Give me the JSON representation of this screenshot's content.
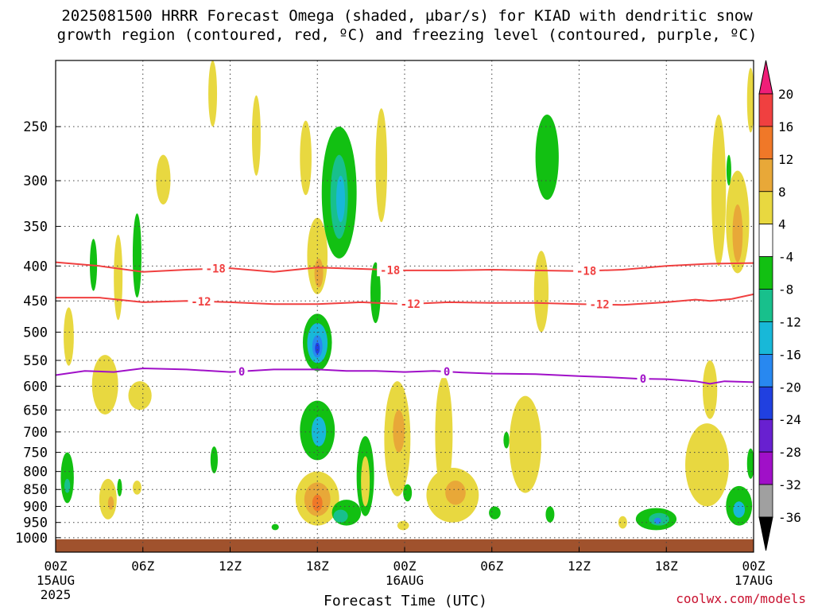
{
  "title_line1": "2025081500 HRRR Forecast Omega (shaded, µbar/s) for KIAD with dendritic snow",
  "title_line2": "growth region (contoured, red, ºC) and freezing level (contoured, purple, ºC)",
  "credit": "coolwx.com/models",
  "chart_data": {
    "type": "heatmap",
    "title": "2025081500 HRRR Forecast Omega (shaded, µbar/s) for KIAD with dendritic snow growth region (contoured, red, ºC) and freezing level (contoured, purple, ºC)",
    "xlabel": "Forecast Time (UTC)",
    "ylabel": "",
    "x_range_hours": [
      0,
      48
    ],
    "y_range_hpa": [
      1050,
      200
    ],
    "y_scale": "log-pressure",
    "grid": true,
    "x_ticks": [
      {
        "hour": 0,
        "label": "00Z",
        "sub1": "15AUG",
        "sub2": "2025"
      },
      {
        "hour": 6,
        "label": "06Z",
        "sub1": "",
        "sub2": ""
      },
      {
        "hour": 12,
        "label": "12Z",
        "sub1": "",
        "sub2": ""
      },
      {
        "hour": 18,
        "label": "18Z",
        "sub1": "",
        "sub2": ""
      },
      {
        "hour": 24,
        "label": "00Z",
        "sub1": "16AUG",
        "sub2": ""
      },
      {
        "hour": 30,
        "label": "06Z",
        "sub1": "",
        "sub2": ""
      },
      {
        "hour": 36,
        "label": "12Z",
        "sub1": "",
        "sub2": ""
      },
      {
        "hour": 42,
        "label": "18Z",
        "sub1": "",
        "sub2": ""
      },
      {
        "hour": 48,
        "label": "00Z",
        "sub1": "17AUG",
        "sub2": ""
      }
    ],
    "y_ticks": [
      250,
      300,
      350,
      400,
      450,
      500,
      550,
      600,
      650,
      700,
      750,
      800,
      850,
      900,
      950,
      1000
    ],
    "colorbar": {
      "labels": [
        "20",
        "16",
        "12",
        "8",
        "4",
        "-4",
        "-8",
        "-12",
        "-16",
        "-20",
        "-24",
        "-28",
        "-32",
        "-36"
      ],
      "colors": [
        "#f01e78",
        "#f04040",
        "#f07828",
        "#e8a838",
        "#e8d840",
        "#ffffff",
        "#12c012",
        "#18c08c",
        "#18b8d8",
        "#2888f0",
        "#2040e0",
        "#6820d0",
        "#a010c8",
        "#a0a0a0",
        "#000000"
      ]
    },
    "shaded_cells": [
      {
        "hour": 0.8,
        "p_center": 820,
        "p_halfspan": 70,
        "h_halfwidth": 0.45,
        "value": -6
      },
      {
        "hour": 0.8,
        "p_center": 840,
        "p_halfspan": 20,
        "h_halfwidth": 0.2,
        "value": -10
      },
      {
        "hour": 0.9,
        "p_center": 510,
        "p_halfspan": 50,
        "h_halfwidth": 0.35,
        "value": 5
      },
      {
        "hour": 2.6,
        "p_center": 400,
        "p_halfspan": 35,
        "h_halfwidth": 0.25,
        "value": -6
      },
      {
        "hour": 3.4,
        "p_center": 600,
        "p_halfspan": 60,
        "h_halfwidth": 0.9,
        "value": 5
      },
      {
        "hour": 3.6,
        "p_center": 880,
        "p_halfspan": 60,
        "h_halfwidth": 0.6,
        "value": 5
      },
      {
        "hour": 3.8,
        "p_center": 890,
        "p_halfspan": 20,
        "h_halfwidth": 0.2,
        "value": 9
      },
      {
        "hour": 4.3,
        "p_center": 420,
        "p_halfspan": 60,
        "h_halfwidth": 0.3,
        "value": 5
      },
      {
        "hour": 5.6,
        "p_center": 390,
        "p_halfspan": 55,
        "h_halfwidth": 0.3,
        "value": -6
      },
      {
        "hour": 5.8,
        "p_center": 620,
        "p_halfspan": 30,
        "h_halfwidth": 0.8,
        "value": 5
      },
      {
        "hour": 5.6,
        "p_center": 845,
        "p_halfspan": 20,
        "h_halfwidth": 0.3,
        "value": 5
      },
      {
        "hour": 4.4,
        "p_center": 845,
        "p_halfspan": 25,
        "h_halfwidth": 0.1,
        "value": -6
      },
      {
        "hour": 7.4,
        "p_center": 300,
        "p_halfspan": 25,
        "h_halfwidth": 0.5,
        "value": 5
      },
      {
        "hour": 10.8,
        "p_center": 220,
        "p_halfspan": 30,
        "h_halfwidth": 0.3,
        "value": 5
      },
      {
        "hour": 10.9,
        "p_center": 770,
        "p_halfspan": 35,
        "h_halfwidth": 0.25,
        "value": -6
      },
      {
        "hour": 13.8,
        "p_center": 260,
        "p_halfspan": 35,
        "h_halfwidth": 0.3,
        "value": 5
      },
      {
        "hour": 15.1,
        "p_center": 965,
        "p_halfspan": 10,
        "h_halfwidth": 0.25,
        "value": -6
      },
      {
        "hour": 17.2,
        "p_center": 280,
        "p_halfspan": 35,
        "h_halfwidth": 0.4,
        "value": 5
      },
      {
        "hour": 18.0,
        "p_center": 390,
        "p_halfspan": 50,
        "h_halfwidth": 0.7,
        "value": 6
      },
      {
        "hour": 18.1,
        "p_center": 410,
        "p_halfspan": 20,
        "h_halfwidth": 0.3,
        "value": 10
      },
      {
        "hour": 19.5,
        "p_center": 320,
        "p_halfspan": 70,
        "h_halfwidth": 1.2,
        "value": -6
      },
      {
        "hour": 19.5,
        "p_center": 320,
        "p_halfspan": 45,
        "h_halfwidth": 0.6,
        "value": -10
      },
      {
        "hour": 19.6,
        "p_center": 320,
        "p_halfspan": 25,
        "h_halfwidth": 0.3,
        "value": -14
      },
      {
        "hour": 18.0,
        "p_center": 520,
        "p_halfspan": 50,
        "h_halfwidth": 1.0,
        "value": -6
      },
      {
        "hour": 18.0,
        "p_center": 520,
        "p_halfspan": 35,
        "h_halfwidth": 0.7,
        "value": -12
      },
      {
        "hour": 18.0,
        "p_center": 525,
        "p_halfspan": 20,
        "h_halfwidth": 0.35,
        "value": -18
      },
      {
        "hour": 18.0,
        "p_center": 528,
        "p_halfspan": 10,
        "h_halfwidth": 0.15,
        "value": -22
      },
      {
        "hour": 18.0,
        "p_center": 700,
        "p_halfspan": 70,
        "h_halfwidth": 1.2,
        "value": -6
      },
      {
        "hour": 18.1,
        "p_center": 700,
        "p_halfspan": 35,
        "h_halfwidth": 0.5,
        "value": -12
      },
      {
        "hour": 18.0,
        "p_center": 880,
        "p_halfspan": 80,
        "h_halfwidth": 1.5,
        "value": 5
      },
      {
        "hour": 18.0,
        "p_center": 880,
        "p_halfspan": 50,
        "h_halfwidth": 0.9,
        "value": 9
      },
      {
        "hour": 18.0,
        "p_center": 890,
        "p_halfspan": 25,
        "h_halfwidth": 0.35,
        "value": 13
      },
      {
        "hour": 20.0,
        "p_center": 920,
        "p_halfspan": 40,
        "h_halfwidth": 1.0,
        "value": -6
      },
      {
        "hour": 19.6,
        "p_center": 930,
        "p_halfspan": 20,
        "h_halfwidth": 0.5,
        "value": -10
      },
      {
        "hour": 21.3,
        "p_center": 820,
        "p_halfspan": 110,
        "h_halfwidth": 0.6,
        "value": -6
      },
      {
        "hour": 21.3,
        "p_center": 830,
        "p_halfspan": 70,
        "h_halfwidth": 0.3,
        "value": 5
      },
      {
        "hour": 22.0,
        "p_center": 440,
        "p_halfspan": 45,
        "h_halfwidth": 0.35,
        "value": -6
      },
      {
        "hour": 22.4,
        "p_center": 290,
        "p_halfspan": 55,
        "h_halfwidth": 0.4,
        "value": 5
      },
      {
        "hour": 23.5,
        "p_center": 730,
        "p_halfspan": 140,
        "h_halfwidth": 0.9,
        "value": 5
      },
      {
        "hour": 23.6,
        "p_center": 700,
        "p_halfspan": 50,
        "h_halfwidth": 0.4,
        "value": 9
      },
      {
        "hour": 23.9,
        "p_center": 960,
        "p_halfspan": 15,
        "h_halfwidth": 0.4,
        "value": 5
      },
      {
        "hour": 24.2,
        "p_center": 860,
        "p_halfspan": 25,
        "h_halfwidth": 0.3,
        "value": -6
      },
      {
        "hour": 26.7,
        "p_center": 720,
        "p_halfspan": 140,
        "h_halfwidth": 0.6,
        "value": 5
      },
      {
        "hour": 27.3,
        "p_center": 870,
        "p_halfspan": 80,
        "h_halfwidth": 1.8,
        "value": 5
      },
      {
        "hour": 27.5,
        "p_center": 860,
        "p_halfspan": 35,
        "h_halfwidth": 0.7,
        "value": 9
      },
      {
        "hour": 30.2,
        "p_center": 920,
        "p_halfspan": 20,
        "h_halfwidth": 0.4,
        "value": -6
      },
      {
        "hour": 31.0,
        "p_center": 720,
        "p_halfspan": 20,
        "h_halfwidth": 0.2,
        "value": -6
      },
      {
        "hour": 32.3,
        "p_center": 740,
        "p_halfspan": 120,
        "h_halfwidth": 1.1,
        "value": 5
      },
      {
        "hour": 33.8,
        "p_center": 280,
        "p_halfspan": 40,
        "h_halfwidth": 0.8,
        "value": -6
      },
      {
        "hour": 33.4,
        "p_center": 440,
        "p_halfspan": 60,
        "h_halfwidth": 0.5,
        "value": 5
      },
      {
        "hour": 34.0,
        "p_center": 925,
        "p_halfspan": 25,
        "h_halfwidth": 0.3,
        "value": -6
      },
      {
        "hour": 39.0,
        "p_center": 950,
        "p_halfspan": 20,
        "h_halfwidth": 0.3,
        "value": 5
      },
      {
        "hour": 41.3,
        "p_center": 940,
        "p_halfspan": 35,
        "h_halfwidth": 1.4,
        "value": -6
      },
      {
        "hour": 41.5,
        "p_center": 940,
        "p_halfspan": 20,
        "h_halfwidth": 0.7,
        "value": -10
      },
      {
        "hour": 41.4,
        "p_center": 945,
        "p_halfspan": 10,
        "h_halfwidth": 0.25,
        "value": -16
      },
      {
        "hour": 44.8,
        "p_center": 790,
        "p_halfspan": 110,
        "h_halfwidth": 1.5,
        "value": 5
      },
      {
        "hour": 45.0,
        "p_center": 610,
        "p_halfspan": 60,
        "h_halfwidth": 0.5,
        "value": 5
      },
      {
        "hour": 45.6,
        "p_center": 320,
        "p_halfspan": 80,
        "h_halfwidth": 0.5,
        "value": 5
      },
      {
        "hour": 46.9,
        "p_center": 350,
        "p_halfspan": 60,
        "h_halfwidth": 0.8,
        "value": 5
      },
      {
        "hour": 46.9,
        "p_center": 360,
        "p_halfspan": 35,
        "h_halfwidth": 0.35,
        "value": 10
      },
      {
        "hour": 46.3,
        "p_center": 290,
        "p_halfspan": 15,
        "h_halfwidth": 0.12,
        "value": -6
      },
      {
        "hour": 47.8,
        "p_center": 230,
        "p_halfspan": 25,
        "h_halfwidth": 0.25,
        "value": 5
      },
      {
        "hour": 47.0,
        "p_center": 900,
        "p_halfspan": 60,
        "h_halfwidth": 0.9,
        "value": -6
      },
      {
        "hour": 47.0,
        "p_center": 910,
        "p_halfspan": 25,
        "h_halfwidth": 0.4,
        "value": -14
      },
      {
        "hour": 47.8,
        "p_center": 780,
        "p_halfspan": 40,
        "h_halfwidth": 0.25,
        "value": -6
      }
    ],
    "contours": [
      {
        "name": "-18",
        "color": "#f04040",
        "label_hours": [
          11,
          23,
          36.5
        ],
        "points": [
          [
            0,
            395
          ],
          [
            3,
            400
          ],
          [
            6,
            408
          ],
          [
            9,
            405
          ],
          [
            12,
            403
          ],
          [
            15,
            408
          ],
          [
            18,
            402
          ],
          [
            21,
            404
          ],
          [
            24,
            406
          ],
          [
            27,
            406
          ],
          [
            30,
            405
          ],
          [
            33,
            406
          ],
          [
            36,
            407
          ],
          [
            39,
            405
          ],
          [
            42,
            400
          ],
          [
            45,
            397
          ],
          [
            48,
            396
          ]
        ]
      },
      {
        "name": "-12",
        "color": "#f04040",
        "label_hours": [
          10,
          24.4,
          37.4
        ],
        "points": [
          [
            0,
            445
          ],
          [
            3,
            445
          ],
          [
            6,
            452
          ],
          [
            9,
            450
          ],
          [
            12,
            452
          ],
          [
            15,
            455
          ],
          [
            18,
            455
          ],
          [
            21,
            452
          ],
          [
            24,
            455
          ],
          [
            27,
            452
          ],
          [
            30,
            453
          ],
          [
            33,
            453
          ],
          [
            36,
            455
          ],
          [
            39,
            456
          ],
          [
            42,
            452
          ],
          [
            44,
            448
          ],
          [
            45,
            450
          ],
          [
            46.5,
            447
          ],
          [
            48,
            440
          ]
        ]
      },
      {
        "name": "0",
        "color": "#a010c8",
        "label_hours": [
          12.8,
          26.9,
          40.4
        ],
        "points": [
          [
            0,
            578
          ],
          [
            2,
            570
          ],
          [
            4,
            572
          ],
          [
            6,
            565
          ],
          [
            9,
            567
          ],
          [
            12,
            572
          ],
          [
            15,
            567
          ],
          [
            18,
            567
          ],
          [
            20,
            570
          ],
          [
            22,
            570
          ],
          [
            24,
            572
          ],
          [
            26,
            570
          ],
          [
            28,
            573
          ],
          [
            30,
            575
          ],
          [
            33,
            576
          ],
          [
            36,
            580
          ],
          [
            38,
            582
          ],
          [
            40,
            585
          ],
          [
            42,
            586
          ],
          [
            44,
            590
          ],
          [
            45,
            595
          ],
          [
            46,
            590
          ],
          [
            48,
            592
          ]
        ]
      }
    ],
    "ground": {
      "p_top": 1000,
      "color": "#a0522d"
    }
  }
}
